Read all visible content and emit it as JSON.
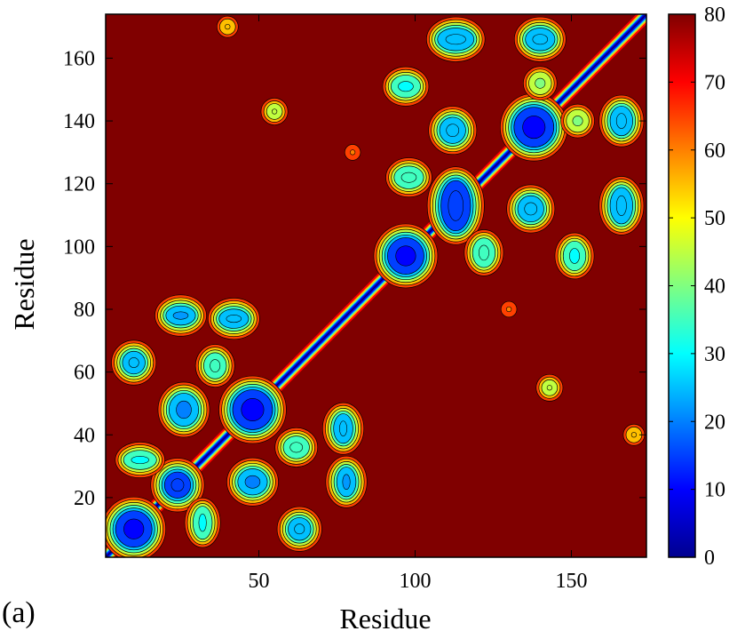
{
  "panel_label": "(a)",
  "chart_data": {
    "type": "heatmap",
    "subtype": "filled-contour distance map",
    "title": "",
    "xlabel": "Residue",
    "ylabel": "Residue",
    "xlim": [
      1,
      174
    ],
    "ylim": [
      1,
      174
    ],
    "x_ticks": [
      50,
      100,
      150
    ],
    "y_ticks": [
      20,
      40,
      60,
      80,
      100,
      120,
      140,
      160
    ],
    "colorbar": {
      "range": [
        0,
        80
      ],
      "ticks": [
        0,
        10,
        20,
        30,
        40,
        50,
        60,
        70,
        80
      ],
      "colormap": "jet",
      "colors": [
        "#00008f",
        "#0000ff",
        "#0080ff",
        "#00ffff",
        "#80ff80",
        "#ffff00",
        "#ff8000",
        "#ff0000",
        "#800000"
      ]
    },
    "background_value": 80,
    "features": [
      {
        "kind": "diagonal",
        "from": 1,
        "to": 174,
        "value": 5
      },
      {
        "kind": "spot",
        "x": 10,
        "y": 10,
        "rx": 8,
        "ry": 8,
        "value": 10
      },
      {
        "kind": "spot",
        "x": 24,
        "y": 24,
        "rx": 5,
        "ry": 5,
        "value": 15
      },
      {
        "kind": "spot",
        "x": 10,
        "y": 63,
        "rx": 4,
        "ry": 4,
        "value": 25
      },
      {
        "kind": "spot",
        "x": 26,
        "y": 48,
        "rx": 6,
        "ry": 7,
        "value": 20
      },
      {
        "kind": "spot",
        "x": 12,
        "y": 32,
        "rx": 7,
        "ry": 3,
        "value": 30
      },
      {
        "kind": "spot",
        "x": 48,
        "y": 25,
        "rx": 6,
        "ry": 5,
        "value": 20
      },
      {
        "kind": "spot",
        "x": 63,
        "y": 10,
        "rx": 4,
        "ry": 4,
        "value": 25
      },
      {
        "kind": "spot",
        "x": 32,
        "y": 12,
        "rx": 3,
        "ry": 7,
        "value": 30
      },
      {
        "kind": "spot",
        "x": 48,
        "y": 48,
        "rx": 9,
        "ry": 9,
        "value": 10
      },
      {
        "kind": "spot",
        "x": 25,
        "y": 78,
        "rx": 6,
        "ry": 3,
        "value": 22
      },
      {
        "kind": "spot",
        "x": 42,
        "y": 77,
        "rx": 6,
        "ry": 3,
        "value": 25
      },
      {
        "kind": "spot",
        "x": 78,
        "y": 25,
        "rx": 3,
        "ry": 6,
        "value": 22
      },
      {
        "kind": "spot",
        "x": 77,
        "y": 42,
        "rx": 3,
        "ry": 6,
        "value": 25
      },
      {
        "kind": "spot",
        "x": 36,
        "y": 62,
        "rx": 4,
        "ry": 5,
        "value": 35
      },
      {
        "kind": "spot",
        "x": 62,
        "y": 36,
        "rx": 5,
        "ry": 4,
        "value": 35
      },
      {
        "kind": "spot",
        "x": 97,
        "y": 97,
        "rx": 8,
        "ry": 8,
        "value": 10
      },
      {
        "kind": "spot",
        "x": 113,
        "y": 113,
        "rx": 6,
        "ry": 12,
        "value": 15
      },
      {
        "kind": "spot",
        "x": 138,
        "y": 138,
        "rx": 9,
        "ry": 9,
        "value": 10
      },
      {
        "kind": "spot",
        "x": 97,
        "y": 151,
        "rx": 6,
        "ry": 4,
        "value": 30
      },
      {
        "kind": "spot",
        "x": 112,
        "y": 137,
        "rx": 5,
        "ry": 5,
        "value": 25
      },
      {
        "kind": "spot",
        "x": 98,
        "y": 122,
        "rx": 6,
        "ry": 4,
        "value": 35
      },
      {
        "kind": "spot",
        "x": 113,
        "y": 166,
        "rx": 8,
        "ry": 4,
        "value": 25
      },
      {
        "kind": "spot",
        "x": 140,
        "y": 166,
        "rx": 6,
        "ry": 4,
        "value": 25
      },
      {
        "kind": "spot",
        "x": 151,
        "y": 97,
        "rx": 4,
        "ry": 6,
        "value": 30
      },
      {
        "kind": "spot",
        "x": 137,
        "y": 112,
        "rx": 5,
        "ry": 5,
        "value": 25
      },
      {
        "kind": "spot",
        "x": 122,
        "y": 98,
        "rx": 4,
        "ry": 6,
        "value": 35
      },
      {
        "kind": "spot",
        "x": 166,
        "y": 113,
        "rx": 4,
        "ry": 8,
        "value": 25
      },
      {
        "kind": "spot",
        "x": 166,
        "y": 140,
        "rx": 4,
        "ry": 6,
        "value": 25
      },
      {
        "kind": "spot",
        "x": 140,
        "y": 152,
        "rx": 4,
        "ry": 4,
        "value": 40
      },
      {
        "kind": "spot",
        "x": 152,
        "y": 140,
        "rx": 4,
        "ry": 4,
        "value": 40
      },
      {
        "kind": "spot",
        "x": 55,
        "y": 143,
        "rx": 2,
        "ry": 2,
        "value": 45
      },
      {
        "kind": "spot",
        "x": 143,
        "y": 55,
        "rx": 2,
        "ry": 2,
        "value": 45
      },
      {
        "kind": "spot",
        "x": 40,
        "y": 170,
        "rx": 2,
        "ry": 2,
        "value": 55
      },
      {
        "kind": "spot",
        "x": 170,
        "y": 40,
        "rx": 2,
        "ry": 2,
        "value": 55
      },
      {
        "kind": "spot",
        "x": 80,
        "y": 130,
        "rx": 2,
        "ry": 2,
        "value": 60
      },
      {
        "kind": "spot",
        "x": 130,
        "y": 80,
        "rx": 2,
        "ry": 2,
        "value": 60
      }
    ]
  }
}
